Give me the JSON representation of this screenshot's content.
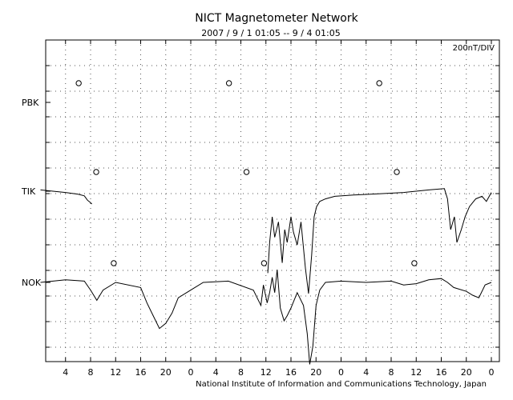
{
  "chart_data": {
    "type": "line",
    "title": "NICT Magnetometer Network",
    "subtitle": "2007 / 9 / 1   01:05 -- 9 / 4  01:05",
    "scale_label": "200nT/DIV",
    "credit": "National Institute of Information and Communications Technology, Japan",
    "x_tick_labels": [
      "4",
      "8",
      "12",
      "16",
      "20",
      "0",
      "4",
      "8",
      "12",
      "16",
      "20",
      "0",
      "4",
      "8",
      "12",
      "16",
      "20",
      "0"
    ],
    "xlim_hours": [
      0,
      72
    ],
    "grid": true,
    "grid_style": "dotted",
    "series": [
      {
        "name": "PBK",
        "midnight_markers_hours": [
          6.1,
          30.1,
          54.1
        ],
        "points": []
      },
      {
        "name": "TIK",
        "midnight_markers_hours": [
          8.9,
          32.9,
          56.9
        ],
        "points": [
          [
            0,
            -0.05
          ],
          [
            2,
            0.0
          ],
          [
            4,
            0.05
          ],
          [
            6,
            0.12
          ],
          [
            7,
            0.18
          ],
          [
            7.5,
            0.35
          ],
          [
            8,
            0.45
          ],
          [
            8.2,
            0.5
          ],
          [
            36.3,
            3.2
          ],
          [
            36.6,
            2.0
          ],
          [
            37.0,
            1.0
          ],
          [
            37.4,
            1.8
          ],
          [
            38.0,
            1.2
          ],
          [
            38.6,
            2.8
          ],
          [
            39.0,
            1.5
          ],
          [
            39.4,
            2.0
          ],
          [
            40.0,
            1.0
          ],
          [
            40.4,
            1.6
          ],
          [
            41.0,
            2.1
          ],
          [
            41.6,
            1.2
          ],
          [
            42.3,
            3.0
          ],
          [
            42.8,
            4.0
          ],
          [
            43.3,
            2.5
          ],
          [
            43.7,
            1.0
          ],
          [
            44.1,
            0.6
          ],
          [
            44.6,
            0.4
          ],
          [
            45.5,
            0.3
          ],
          [
            47.0,
            0.2
          ],
          [
            50.0,
            0.15
          ],
          [
            54.0,
            0.1
          ],
          [
            58.0,
            0.05
          ],
          [
            62.0,
            -0.05
          ],
          [
            64.5,
            -0.1
          ],
          [
            65.0,
            0.3
          ],
          [
            65.5,
            1.5
          ],
          [
            66.1,
            1.0
          ],
          [
            66.5,
            2.0
          ],
          [
            67.2,
            1.5
          ],
          [
            67.8,
            1.0
          ],
          [
            68.5,
            0.6
          ],
          [
            69.5,
            0.3
          ],
          [
            70.5,
            0.2
          ],
          [
            71.2,
            0.4
          ],
          [
            72,
            0.05
          ]
        ]
      },
      {
        "name": "NOK",
        "midnight_markers_hours": [
          11.7,
          35.7,
          59.7
        ],
        "points": [
          [
            0,
            0.0
          ],
          [
            4,
            -0.1
          ],
          [
            7,
            -0.05
          ],
          [
            8,
            0.3
          ],
          [
            9,
            0.7
          ],
          [
            10,
            0.3
          ],
          [
            12,
            0.0
          ],
          [
            16,
            0.2
          ],
          [
            17,
            0.8
          ],
          [
            18,
            1.3
          ],
          [
            19,
            1.8
          ],
          [
            20,
            1.6
          ],
          [
            21,
            1.2
          ],
          [
            22,
            0.6
          ],
          [
            24,
            0.3
          ],
          [
            26,
            0.0
          ],
          [
            30,
            -0.05
          ],
          [
            34,
            0.3
          ],
          [
            35.2,
            0.9
          ],
          [
            35.6,
            0.1
          ],
          [
            36.2,
            0.8
          ],
          [
            36.6,
            0.4
          ],
          [
            37.0,
            -0.2
          ],
          [
            37.4,
            0.4
          ],
          [
            37.8,
            -0.5
          ],
          [
            38.3,
            1.0
          ],
          [
            38.9,
            1.5
          ],
          [
            39.4,
            1.3
          ],
          [
            40.0,
            1.0
          ],
          [
            41.0,
            0.4
          ],
          [
            42.0,
            0.9
          ],
          [
            42.6,
            2.0
          ],
          [
            43.0,
            3.2
          ],
          [
            43.5,
            2.5
          ],
          [
            44.0,
            0.9
          ],
          [
            44.6,
            0.3
          ],
          [
            45.5,
            0.0
          ],
          [
            48,
            -0.05
          ],
          [
            52,
            0.0
          ],
          [
            56,
            -0.05
          ],
          [
            58,
            0.1
          ],
          [
            60,
            0.05
          ],
          [
            62,
            -0.1
          ],
          [
            64,
            -0.15
          ],
          [
            65,
            0.0
          ],
          [
            66,
            0.2
          ],
          [
            68,
            0.35
          ],
          [
            69,
            0.5
          ],
          [
            70,
            0.6
          ],
          [
            71,
            0.1
          ],
          [
            72,
            0.0
          ]
        ]
      }
    ]
  }
}
